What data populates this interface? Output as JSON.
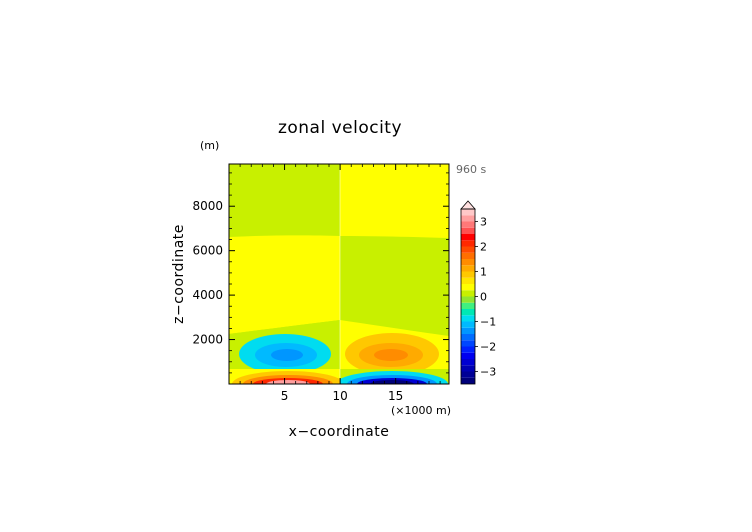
{
  "chart_data": {
    "type": "heatmap",
    "title": "zonal velocity",
    "xlabel": "x−coordinate",
    "ylabel": "z−coordinate",
    "x_unit_label": "(×1000 m)",
    "y_unit_label": "(m)",
    "time_label": "960 s",
    "xlim": [
      0,
      19.8
    ],
    "ylim": [
      0,
      9900
    ],
    "x_ticks": [
      5,
      10,
      15
    ],
    "x_tick_labels": [
      "5",
      "10",
      "15"
    ],
    "y_ticks": [
      2000,
      4000,
      6000,
      8000
    ],
    "y_tick_labels": [
      "2000",
      "4000",
      "6000",
      "8000"
    ],
    "colorbar": {
      "levels": [
        -3.5,
        -3.25,
        -3.0,
        -2.75,
        -2.5,
        -2.25,
        -2.0,
        -1.75,
        -1.5,
        -1.25,
        -1.0,
        -0.75,
        -0.5,
        -0.25,
        0.0,
        0.25,
        0.5,
        0.75,
        1.0,
        1.25,
        1.5,
        1.75,
        2.0,
        2.25,
        2.5,
        2.75,
        3.0,
        3.25,
        3.5
      ],
      "colors": [
        "#00007a",
        "#000096",
        "#0000b4",
        "#0000d2",
        "#0000f0",
        "#0020ff",
        "#0046ff",
        "#006cff",
        "#0096ff",
        "#00baff",
        "#00dcf0",
        "#00e8b4",
        "#40f080",
        "#90e630",
        "#c8f000",
        "#ffff00",
        "#ffe600",
        "#ffc800",
        "#ffaa00",
        "#ff8c00",
        "#ff6e00",
        "#ff4a00",
        "#ff2800",
        "#ff0000",
        "#ff5050",
        "#ff7878",
        "#ffa0a0",
        "#ffc8c8"
      ],
      "tick_values": [
        3,
        2,
        1,
        0,
        -1,
        -2,
        -3
      ],
      "tick_labels": [
        "3",
        "2",
        "1",
        "0",
        "−1",
        "−2",
        "−3"
      ],
      "extend": "max"
    },
    "field_description_values": {
      "upper_left_region_value": 0.1,
      "upper_right_region_value": 0.3,
      "middle_left_region_value": 0.3,
      "middle_right_region_value": 0.1,
      "left_lower_minimum": -1.5,
      "right_lower_maximum": 1.5,
      "left_surface_maximum": 3.0,
      "right_surface_minimum": -3.5
    }
  }
}
